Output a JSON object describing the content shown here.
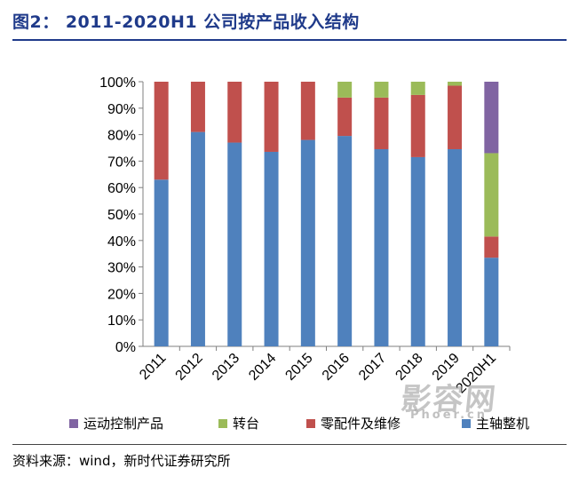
{
  "figure": {
    "title": "图2： 2011-2020H1 公司按产品收入结构",
    "source": "资料来源：wind，新时代证券研究所",
    "watermark": "影容网",
    "watermark_sub": "Phoer.cn"
  },
  "chart_data": {
    "type": "bar",
    "stacked": true,
    "categories": [
      "2011",
      "2012",
      "2013",
      "2014",
      "2015",
      "2016",
      "2017",
      "2018",
      "2019",
      "2020H1"
    ],
    "series": [
      {
        "name": "主轴整机",
        "color": "#4f81bd",
        "values": [
          63,
          81,
          77,
          73.5,
          78,
          79.5,
          74.5,
          71.5,
          74.5,
          33.5
        ]
      },
      {
        "name": "零配件及维修",
        "color": "#c0504d",
        "values": [
          37,
          19,
          23,
          26.5,
          22,
          14.5,
          19.5,
          23.5,
          24,
          8
        ]
      },
      {
        "name": "转台",
        "color": "#9bbb59",
        "values": [
          0,
          0,
          0,
          0,
          0,
          6,
          6,
          5,
          1.5,
          31.5
        ]
      },
      {
        "name": "运动控制产品",
        "color": "#8064a2",
        "values": [
          0,
          0,
          0,
          0,
          0,
          0,
          0,
          0,
          0,
          27
        ]
      }
    ],
    "legend_order": [
      "运动控制产品",
      "转台",
      "零配件及维修",
      "主轴整机"
    ],
    "yticks": [
      "0%",
      "10%",
      "20%",
      "30%",
      "40%",
      "50%",
      "60%",
      "70%",
      "80%",
      "90%",
      "100%"
    ],
    "ylim": [
      0,
      100
    ],
    "xlabel": "",
    "ylabel": "",
    "legend_position": "bottom"
  }
}
